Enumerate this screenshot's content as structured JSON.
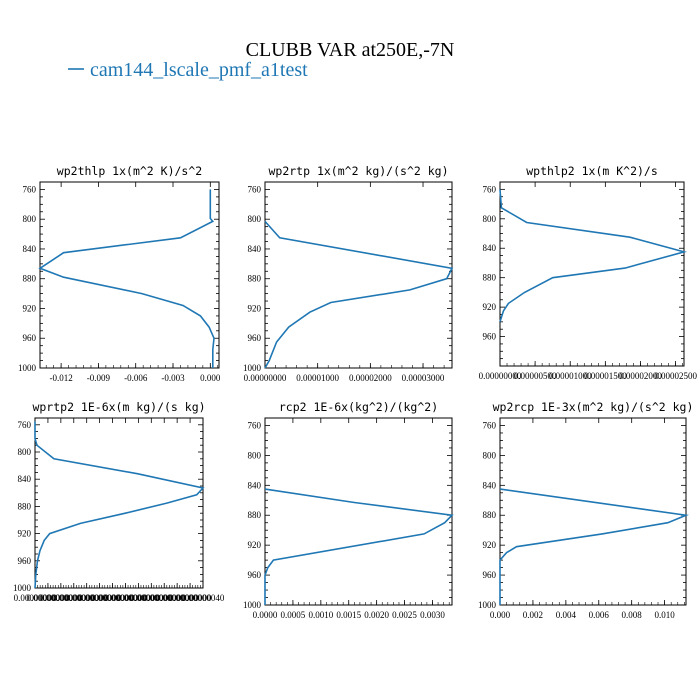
{
  "figure": {
    "title": "CLUBB VAR at250E,-7N",
    "legend_label": "cam144_lscale_pmf_a1test",
    "legend_color": "#1f77b4"
  },
  "chart_data": [
    {
      "type": "line",
      "title": "wp2thlp  1x(m^2 K)/s^2",
      "xlim": [
        -0.0137,
        0.0007
      ],
      "ylim": [
        1000,
        750
      ],
      "yticks": [
        760,
        800,
        840,
        880,
        920,
        960,
        1000
      ],
      "xticks": [
        -0.012,
        -0.009,
        -0.006,
        -0.003,
        0.0
      ],
      "xtick_labels": [
        "-0.012",
        "-0.009",
        "-0.006",
        "-0.003",
        "0.000"
      ],
      "series": [
        {
          "color": "#1f77b4",
          "x": [
            0.0,
            0.0,
            0.0002,
            -0.0024,
            -0.0118,
            -0.0137,
            -0.0118,
            -0.0055,
            -0.0022,
            -0.0008,
            -0.0001,
            0.0003,
            0.0002,
            0.0002,
            0.0002
          ],
          "y": [
            760,
            799,
            803,
            825,
            845,
            866,
            878,
            900,
            916,
            930,
            945,
            960,
            975,
            990,
            1000
          ]
        }
      ]
    },
    {
      "type": "line",
      "title": "wp2rtp  1x(m^2 kg)/(s^2 kg)",
      "xlim": [
        0,
        3.55e-05
      ],
      "ylim": [
        1000,
        750
      ],
      "yticks": [
        760,
        800,
        840,
        880,
        920,
        960,
        1000
      ],
      "xticks": [
        0,
        1e-05,
        2e-05,
        3e-05
      ],
      "xtick_labels": [
        "0.00000000",
        "0.00001000",
        "0.00002000",
        "0.00003000"
      ],
      "series": [
        {
          "color": "#1f77b4",
          "x": [
            0,
            2.8e-06,
            3.55e-05,
            3.45e-05,
            2.75e-05,
            1.25e-05,
            8.5e-06,
            4.5e-06,
            2.2e-06,
            8e-07,
            0
          ],
          "y": [
            803,
            825,
            866,
            880,
            895,
            912,
            925,
            945,
            965,
            990,
            1000
          ]
        }
      ]
    },
    {
      "type": "line",
      "title": "wpthlp2  1x(m K^2)/s",
      "xlim": [
        0,
        2.62e-05
      ],
      "ylim": [
        1000,
        750
      ],
      "yticks": [
        760,
        800,
        840,
        880,
        920,
        960
      ],
      "xticks": [
        0,
        5e-06,
        1e-05,
        1.5e-05,
        2e-05,
        2.5e-05
      ],
      "xtick_labels": [
        "0.00000000",
        "0.00000500",
        "0.00001000",
        "0.00001500",
        "0.00002000",
        "0.00002500"
      ],
      "series": [
        {
          "color": "#1f77b4",
          "x": [
            0,
            2e-07,
            3.8e-06,
            1.85e-05,
            2.62e-05,
            1.78e-05,
            7.5e-06,
            3.5e-06,
            1.2e-06,
            5e-07,
            0
          ],
          "y": [
            760,
            785,
            805,
            825,
            845,
            867,
            880,
            900,
            915,
            925,
            940
          ]
        }
      ]
    },
    {
      "type": "line",
      "title": "wprtp2  1E-6x(m kg)/(s kg)",
      "xlim": [
        0,
        4e-07
      ],
      "ylim": [
        1000,
        750
      ],
      "yticks": [
        760,
        800,
        840,
        880,
        920,
        960,
        1000
      ],
      "xtick_labels": [
        "0.00000000",
        "0.00000000",
        "0.00000000",
        "0.00000000",
        "0.00000000",
        "0.00000000",
        "0.00000000",
        "0.00000000",
        "0.00000000",
        "0.00000000",
        "0.00000000",
        "0.00000000",
        "0.00000000",
        "0.00000040"
      ],
      "series": [
        {
          "color": "#1f77b4",
          "x": [
            0,
            0,
            4.5e-09,
            4.5e-08,
            2.45e-07,
            4e-07,
            3.85e-07,
            3.15e-07,
            2.15e-07,
            1.08e-07,
            3.5e-08,
            2.2e-08,
            1.2e-08,
            6e-09,
            2e-09,
            0
          ],
          "y": [
            755,
            780,
            790,
            810,
            832,
            853,
            863,
            875,
            890,
            905,
            920,
            930,
            945,
            960,
            980,
            1000
          ]
        }
      ]
    },
    {
      "type": "line",
      "title": "rcp2  1E-6x(kg^2)/(kg^2)",
      "xlim": [
        0,
        0.00335
      ],
      "ylim": [
        1000,
        750
      ],
      "yticks": [
        760,
        800,
        840,
        880,
        920,
        960,
        1000
      ],
      "xticks": [
        0,
        0.0005,
        0.001,
        0.0015,
        0.002,
        0.0025,
        0.003
      ],
      "xtick_labels": [
        "0.0000",
        "0.0005",
        "0.0010",
        "0.0015",
        "0.0020",
        "0.0025",
        "0.0030"
      ],
      "series": [
        {
          "color": "#1f77b4",
          "x": [
            0,
            0.0016,
            0.00335,
            0.00322,
            0.00285,
            0.00015,
            5e-05,
            0,
            0
          ],
          "y": [
            845,
            863,
            880,
            890,
            905,
            940,
            950,
            960,
            1000
          ]
        }
      ]
    },
    {
      "type": "line",
      "title": "wp2rcp  1E-3x(m^2 kg)/(s^2 kg)",
      "xlim": [
        0,
        0.0113
      ],
      "ylim": [
        1000,
        750
      ],
      "yticks": [
        760,
        800,
        840,
        880,
        920,
        960,
        1000
      ],
      "xticks": [
        0,
        0.002,
        0.004,
        0.006,
        0.008,
        0.01
      ],
      "xtick_labels": [
        "0.000",
        "0.002",
        "0.004",
        "0.006",
        "0.008",
        "0.010"
      ],
      "series": [
        {
          "color": "#1f77b4",
          "x": [
            0,
            0.0113,
            0.0102,
            0.0062,
            0.001,
            0.0004,
            0,
            0
          ],
          "y": [
            845,
            880,
            890,
            905,
            922,
            930,
            940,
            1000
          ]
        }
      ]
    }
  ]
}
